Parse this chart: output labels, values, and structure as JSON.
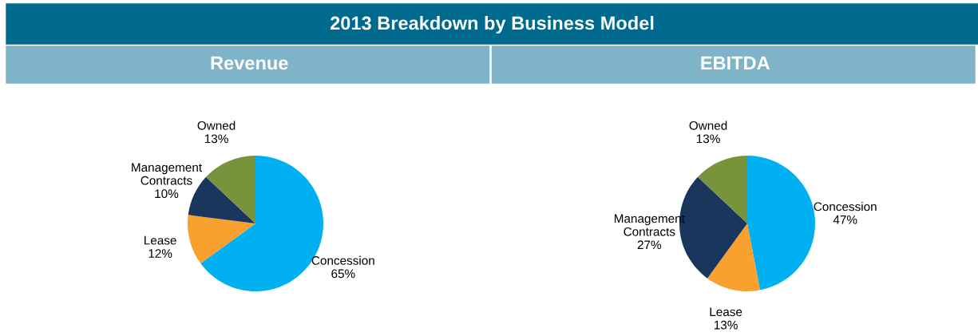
{
  "chart_data": [
    {
      "type": "pie",
      "title": "2013 Breakdown by Business Model",
      "subtitle": "Revenue",
      "categories": [
        "Concession",
        "Lease",
        "Management\nContracts",
        "Owned"
      ],
      "values": [
        65,
        12,
        10,
        13
      ],
      "value_labels": [
        "65%",
        "12%",
        "10%",
        "13%"
      ],
      "colors": [
        "#00b0f0",
        "#f9a12e",
        "#1b365d",
        "#77933c"
      ]
    },
    {
      "type": "pie",
      "subtitle": "EBITDA",
      "categories": [
        "Concession",
        "Lease",
        "Management\nContracts",
        "Owned"
      ],
      "values": [
        47,
        13,
        27,
        13
      ],
      "value_labels": [
        "47%",
        "13%",
        "27%",
        "13%"
      ],
      "colors": [
        "#00b0f0",
        "#f9a12e",
        "#1b365d",
        "#77933c"
      ]
    }
  ]
}
